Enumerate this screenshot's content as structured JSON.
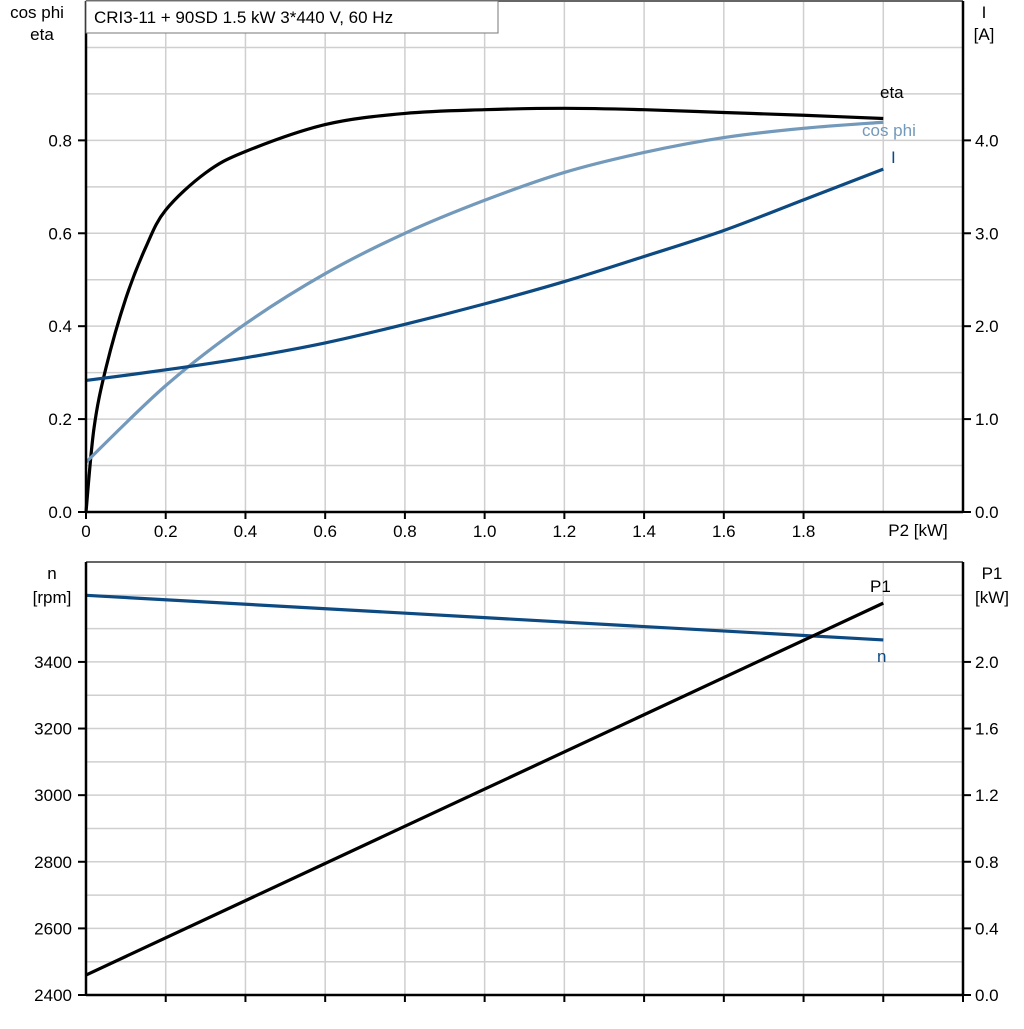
{
  "chart_data": [
    {
      "type": "line",
      "title": "CRI3-11 + 90SD   1.5 kW   3*440 V, 60 Hz",
      "xlabel": "P2 [kW]",
      "ylabel_left": [
        "cos phi",
        "eta"
      ],
      "ylabel_right": [
        "I",
        "[A]"
      ],
      "xlim": [
        0,
        2.2
      ],
      "ylim_left": [
        0,
        1.1
      ],
      "ylim_right": [
        0,
        5.5
      ],
      "x_ticks": [
        "0",
        "0.2",
        "0.4",
        "0.6",
        "0.8",
        "1.0",
        "1.2",
        "1.4",
        "1.6",
        "1.8"
      ],
      "y_ticks_left": [
        "0.0",
        "0.2",
        "0.4",
        "0.6",
        "0.8"
      ],
      "y_ticks_right": [
        "0.0",
        "1.0",
        "2.0",
        "3.0",
        "4.0"
      ],
      "grid": true,
      "series": [
        {
          "name": "eta",
          "axis": "left",
          "color": "#000000",
          "x": [
            0,
            0.02,
            0.05,
            0.1,
            0.15,
            0.2,
            0.3,
            0.4,
            0.6,
            0.8,
            1.0,
            1.2,
            1.4,
            1.6,
            1.8,
            2.0
          ],
          "y": [
            0,
            0.18,
            0.31,
            0.46,
            0.57,
            0.65,
            0.73,
            0.776,
            0.834,
            0.858,
            0.866,
            0.869,
            0.866,
            0.86,
            0.854,
            0.847
          ]
        },
        {
          "name": "cos phi",
          "axis": "left",
          "color": "#7399bb",
          "x": [
            0,
            0.2,
            0.4,
            0.6,
            0.8,
            1.0,
            1.2,
            1.4,
            1.6,
            1.8,
            2.0
          ],
          "y": [
            0.107,
            0.272,
            0.405,
            0.513,
            0.6,
            0.671,
            0.731,
            0.774,
            0.806,
            0.826,
            0.839
          ]
        },
        {
          "name": "I",
          "axis": "right",
          "color": "#0d4a82",
          "x": [
            0,
            0.2,
            0.4,
            0.6,
            0.8,
            1.0,
            1.2,
            1.4,
            1.6,
            1.8,
            2.0
          ],
          "y": [
            1.416,
            1.53,
            1.66,
            1.82,
            2.02,
            2.24,
            2.48,
            2.75,
            3.03,
            3.36,
            3.69
          ]
        }
      ]
    },
    {
      "type": "line",
      "xlim": [
        0,
        2.2
      ],
      "ylabel_left": [
        "n",
        "[rpm]"
      ],
      "ylabel_right": [
        "P1",
        "[kW]"
      ],
      "ylim_left": [
        2400,
        3700
      ],
      "ylim_right": [
        0,
        2.6
      ],
      "y_ticks_left": [
        "2400",
        "2600",
        "2800",
        "3000",
        "3200",
        "3400"
      ],
      "y_ticks_right": [
        "0.0",
        "0.4",
        "0.8",
        "1.2",
        "1.6",
        "2.0"
      ],
      "grid": true,
      "series": [
        {
          "name": "n",
          "axis": "left",
          "color": "#0d4a82",
          "x": [
            0,
            2.0
          ],
          "y": [
            3600,
            3466
          ]
        },
        {
          "name": "P1",
          "axis": "right",
          "color": "#000000",
          "x": [
            0,
            2.0
          ],
          "y": [
            0.12,
            2.353
          ]
        }
      ]
    }
  ]
}
